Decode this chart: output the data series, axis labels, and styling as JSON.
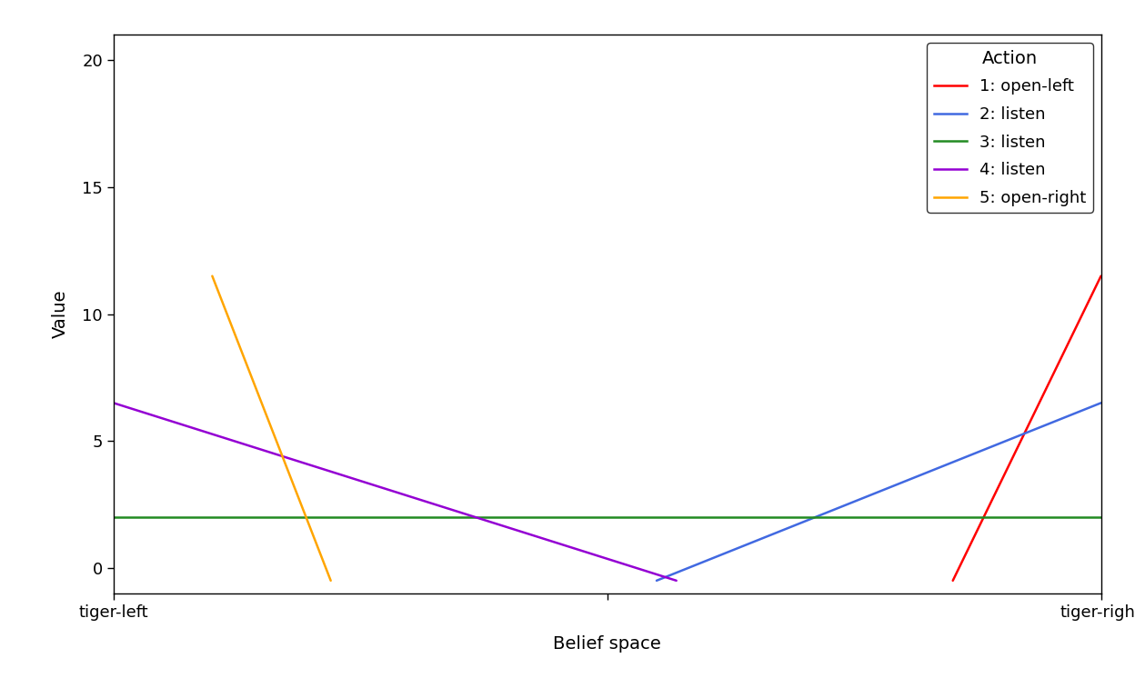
{
  "title": "",
  "xlabel": "Belief space",
  "ylabel": "Value",
  "xlim": [
    0,
    1
  ],
  "ylim": [
    -1.0,
    21.0
  ],
  "yticks": [
    0,
    5,
    10,
    15,
    20
  ],
  "xtick_positions": [
    0,
    0.5,
    1
  ],
  "xtick_labels": [
    "tiger-left",
    "",
    "tiger-right"
  ],
  "legend_title": "Action",
  "lines": [
    {
      "label": "1: open-left",
      "color": "#FF0000",
      "x": [
        0.85,
        1.0
      ],
      "y": [
        -0.5,
        11.5
      ]
    },
    {
      "label": "2: listen",
      "color": "#4169E1",
      "x": [
        0.55,
        1.0
      ],
      "y": [
        -0.5,
        6.5
      ]
    },
    {
      "label": "3: listen",
      "color": "#228B22",
      "x": [
        0,
        1
      ],
      "y": [
        2.0,
        2.0
      ]
    },
    {
      "label": "4: listen",
      "color": "#9400D3",
      "x": [
        0,
        0.57
      ],
      "y": [
        6.5,
        -0.5
      ]
    },
    {
      "label": "5: open-right",
      "color": "#FFA500",
      "x": [
        0.1,
        0.22
      ],
      "y": [
        11.5,
        -0.5
      ]
    }
  ],
  "background_color": "#FFFFFF",
  "figure_facecolor": "#FFFFFF",
  "legend_position": "upper right",
  "line_width": 1.8,
  "font_size": 14,
  "tick_font_size": 13,
  "legend_font_size": 13,
  "legend_title_font_size": 14
}
